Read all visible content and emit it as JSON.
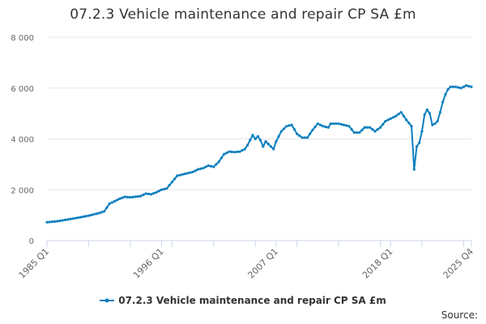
{
  "chart_data": {
    "type": "line",
    "title": "07.2.3 Vehicle maintenance and repair CP SA £m",
    "xlabel": "",
    "ylabel": "",
    "ylim": [
      0,
      8000
    ],
    "y_ticks": [
      0,
      2000,
      4000,
      6000,
      8000
    ],
    "y_tick_labels": [
      "0",
      "2 000",
      "4 000",
      "6 000",
      "8 000"
    ],
    "x_tick_labels": [
      "1985 Q1",
      "1996 Q1",
      "2007 Q1",
      "2018 Q1",
      "2025 Q4"
    ],
    "x_tick_positions": [
      "1985 Q1",
      "1996 Q1",
      "2007 Q1",
      "2018 Q1",
      "2025 Q4"
    ],
    "grid": "horizontal",
    "legend": "bottom-center",
    "color": "#0c7fbf",
    "series": [
      {
        "name": "07.2.3 Vehicle maintenance and repair CP SA £m",
        "keyframes": [
          [
            "1985 Q1",
            720
          ],
          [
            "1986 Q1",
            760
          ],
          [
            "1987 Q1",
            830
          ],
          [
            "1988 Q1",
            900
          ],
          [
            "1989 Q1",
            980
          ],
          [
            "1990 Q1",
            1080
          ],
          [
            "1990 Q3",
            1150
          ],
          [
            "1991 Q1",
            1450
          ],
          [
            "1992 Q1",
            1650
          ],
          [
            "1992 Q3",
            1720
          ],
          [
            "1993 Q1",
            1700
          ],
          [
            "1994 Q1",
            1750
          ],
          [
            "1994 Q3",
            1850
          ],
          [
            "1995 Q1",
            1820
          ],
          [
            "1995 Q3",
            1900
          ],
          [
            "1996 Q1",
            2000
          ],
          [
            "1996 Q3",
            2050
          ],
          [
            "1997 Q1",
            2300
          ],
          [
            "1997 Q3",
            2550
          ],
          [
            "1998 Q1",
            2600
          ],
          [
            "1999 Q1",
            2700
          ],
          [
            "1999 Q3",
            2800
          ],
          [
            "2000 Q1",
            2850
          ],
          [
            "2000 Q3",
            2950
          ],
          [
            "2001 Q1",
            2900
          ],
          [
            "2001 Q3",
            3100
          ],
          [
            "2002 Q1",
            3400
          ],
          [
            "2002 Q3",
            3500
          ],
          [
            "2003 Q1",
            3480
          ],
          [
            "2003 Q3",
            3500
          ],
          [
            "2004 Q1",
            3600
          ],
          [
            "2004 Q2",
            3750
          ],
          [
            "2004 Q4",
            4150
          ],
          [
            "2005 Q1",
            4000
          ],
          [
            "2005 Q2",
            4100
          ],
          [
            "2005 Q3",
            3950
          ],
          [
            "2005 Q4",
            3700
          ],
          [
            "2006 Q1",
            3900
          ],
          [
            "2006 Q3",
            3700
          ],
          [
            "2006 Q4",
            3600
          ],
          [
            "2007 Q1",
            3900
          ],
          [
            "2007 Q3",
            4300
          ],
          [
            "2008 Q1",
            4500
          ],
          [
            "2008 Q3",
            4550
          ],
          [
            "2009 Q1",
            4200
          ],
          [
            "2009 Q3",
            4050
          ],
          [
            "2010 Q1",
            4050
          ],
          [
            "2010 Q3",
            4350
          ],
          [
            "2011 Q1",
            4600
          ],
          [
            "2011 Q3",
            4500
          ],
          [
            "2012 Q1",
            4450
          ],
          [
            "2012 Q2",
            4600
          ],
          [
            "2013 Q1",
            4600
          ],
          [
            "2013 Q3",
            4550
          ],
          [
            "2014 Q1",
            4500
          ],
          [
            "2014 Q3",
            4250
          ],
          [
            "2015 Q1",
            4250
          ],
          [
            "2015 Q3",
            4450
          ],
          [
            "2016 Q1",
            4450
          ],
          [
            "2016 Q3",
            4300
          ],
          [
            "2017 Q1",
            4450
          ],
          [
            "2017 Q3",
            4700
          ],
          [
            "2018 Q1",
            4800
          ],
          [
            "2018 Q3",
            4900
          ],
          [
            "2019 Q1",
            5050
          ],
          [
            "2019 Q3",
            4750
          ],
          [
            "2020 Q1",
            4500
          ],
          [
            "2020 Q2",
            2800
          ],
          [
            "2020 Q3",
            3700
          ],
          [
            "2020 Q4",
            3850
          ],
          [
            "2021 Q1",
            4300
          ],
          [
            "2021 Q2",
            4950
          ],
          [
            "2021 Q3",
            5150
          ],
          [
            "2021 Q4",
            5000
          ],
          [
            "2022 Q1",
            4550
          ],
          [
            "2022 Q2",
            4600
          ],
          [
            "2022 Q3",
            4700
          ],
          [
            "2022 Q4",
            5050
          ],
          [
            "2023 Q1",
            5450
          ],
          [
            "2023 Q2",
            5750
          ],
          [
            "2023 Q3",
            5950
          ],
          [
            "2023 Q4",
            6050
          ],
          [
            "2024 Q2",
            6050
          ],
          [
            "2024 Q4",
            6000
          ],
          [
            "2025 Q2",
            6100
          ],
          [
            "2025 Q4",
            6050
          ]
        ]
      }
    ]
  },
  "legend": {
    "label": "07.2.3 Vehicle maintenance and repair CP SA £m"
  },
  "source": {
    "label": "Source:"
  }
}
